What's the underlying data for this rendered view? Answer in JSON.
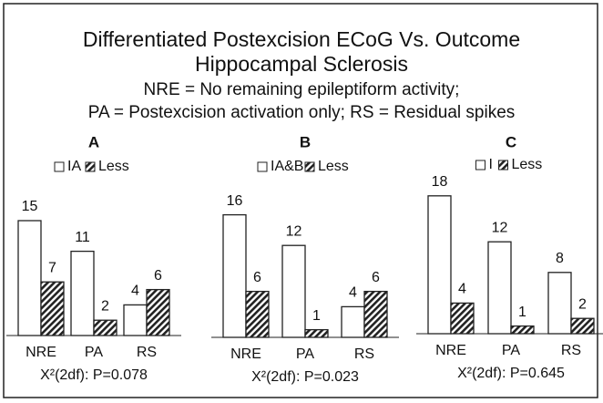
{
  "header": {
    "title": [
      "Differentiated Postexcision ECoG Vs. Outcome",
      "Hippocampal Sclerosis",
      "NRE = No remaining epileptiform activity;",
      "PA = Postexcision activation only; RS = Residual spikes"
    ]
  },
  "chart_data": [
    {
      "type": "bar",
      "title": "A",
      "categories": [
        "NRE",
        "PA",
        "RS"
      ],
      "series": [
        {
          "name": "IA",
          "color": "#ffffff",
          "values": [
            15,
            11,
            4
          ]
        },
        {
          "name": "Less",
          "color": "#222222",
          "hatch": true,
          "values": [
            7,
            2,
            6
          ]
        }
      ],
      "annotation": "X²(2df): P=0.078"
    },
    {
      "type": "bar",
      "title": "B",
      "categories": [
        "NRE",
        "PA",
        "RS"
      ],
      "series": [
        {
          "name": "IA&B",
          "color": "#ffffff",
          "values": [
            16,
            12,
            4
          ]
        },
        {
          "name": "Less",
          "color": "#222222",
          "hatch": true,
          "values": [
            6,
            1,
            6
          ]
        }
      ],
      "annotation": "X²(2df): P=0.023"
    },
    {
      "type": "bar",
      "title": "C",
      "categories": [
        "NRE",
        "PA",
        "RS"
      ],
      "series": [
        {
          "name": "I",
          "color": "#ffffff",
          "values": [
            18,
            12,
            8
          ]
        },
        {
          "name": "Less",
          "color": "#222222",
          "hatch": true,
          "values": [
            4,
            1,
            2
          ]
        }
      ],
      "annotation": "X²(2df): P=0.645"
    }
  ]
}
